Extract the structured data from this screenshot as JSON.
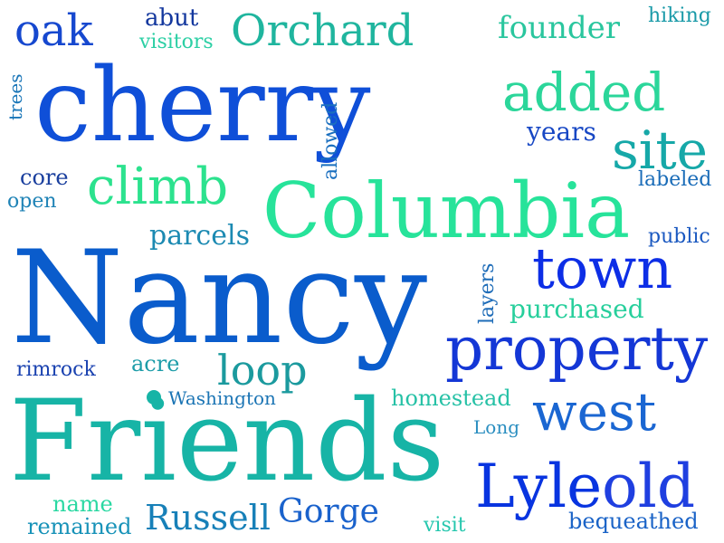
{
  "words": [
    {
      "text": "cherry",
      "color": "#0f4fd8"
    },
    {
      "text": "Nancy",
      "color": "#0a5ccc"
    },
    {
      "text": "Friends",
      "color": "#17b4a6"
    },
    {
      "text": "Columbia",
      "color": "#27e39a"
    },
    {
      "text": "property",
      "color": "#1437d6"
    },
    {
      "text": "Lyle",
      "color": "#0834e0"
    },
    {
      "text": "old",
      "color": "#1f3fe0"
    },
    {
      "text": "west",
      "color": "#1a66d2"
    },
    {
      "text": "town",
      "color": "#0d2ee6"
    },
    {
      "text": "added",
      "color": "#2bd69a"
    },
    {
      "text": "site",
      "color": "#16a8a8"
    },
    {
      "text": "climb",
      "color": "#2ce28e"
    },
    {
      "text": "Orchard",
      "color": "#1fb59e"
    },
    {
      "text": "oak",
      "color": "#1648cf"
    },
    {
      "text": "loop",
      "color": "#1b9a9e"
    },
    {
      "text": "Gorge",
      "color": "#1a62cc"
    },
    {
      "text": "Russell",
      "color": "#1780b8"
    },
    {
      "text": "founder",
      "color": "#2ac69e"
    },
    {
      "text": "parcels",
      "color": "#1c8ab2"
    },
    {
      "text": "purchased",
      "color": "#27cf9c"
    },
    {
      "text": "homestead",
      "color": "#26c1a6"
    },
    {
      "text": "name",
      "color": "#2ad8a2"
    },
    {
      "text": "remained",
      "color": "#1792b8"
    },
    {
      "text": "visit",
      "color": "#26c7ae"
    },
    {
      "text": "bequeathed",
      "color": "#1a63c7"
    },
    {
      "text": "abut",
      "color": "#14389e"
    },
    {
      "text": "visitors",
      "color": "#2bcfa4"
    },
    {
      "text": "hiking",
      "color": "#1a9aa8"
    },
    {
      "text": "trees",
      "color": "#1a76b8"
    },
    {
      "text": "allowed",
      "color": "#1a6fbf"
    },
    {
      "text": "years",
      "color": "#1747c4"
    },
    {
      "text": "core",
      "color": "#1a3f9e"
    },
    {
      "text": "open",
      "color": "#1f83b6"
    },
    {
      "text": "labeled",
      "color": "#1a6cb8"
    },
    {
      "text": "public",
      "color": "#1a58c0"
    },
    {
      "text": "layers",
      "color": "#1e6cb8"
    },
    {
      "text": "acre",
      "color": "#1c9ca8"
    },
    {
      "text": "rimrock",
      "color": "#1a42b0"
    },
    {
      "text": "Washington",
      "color": "#1a74b4"
    },
    {
      "text": "Long",
      "color": "#2a8ec0"
    }
  ]
}
